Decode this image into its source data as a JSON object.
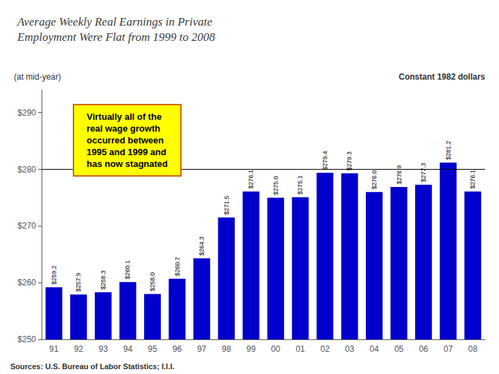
{
  "chart_data": {
    "type": "bar",
    "title": "Average Weekly Real Earnings in Private\nEmployment Were Flat from 1999 to 2008",
    "subtitle": "(at mid-year)",
    "ylabel": "Constant 1982 dollars",
    "annotation": "Virtually all of the\nreal wage growth\noccurred between\n1995 and 1999 and\nhas now stagnated",
    "source": "Sources: U.S. Bureau of Labor Statistics; I.I.I.",
    "categories": [
      "91",
      "92",
      "93",
      "94",
      "95",
      "96",
      "97",
      "98",
      "99",
      "00",
      "01",
      "02",
      "03",
      "04",
      "05",
      "06",
      "07",
      "08"
    ],
    "values": [
      259.2,
      257.9,
      258.3,
      260.1,
      258.0,
      260.7,
      264.3,
      271.5,
      276.1,
      275.0,
      275.1,
      279.4,
      279.3,
      276.0,
      276.9,
      277.3,
      281.2,
      276.1
    ],
    "value_labels": [
      "$259.2",
      "$257.9",
      "$258.3",
      "$260.1",
      "$258.0",
      "$260.7",
      "$264.3",
      "$271.5",
      "$276.1",
      "$275.0",
      "$275.1",
      "$279.4",
      "$279.3",
      "$276.0",
      "$276.9",
      "$277.3",
      "$281.2",
      "$276.1"
    ],
    "data_labels": true,
    "color": "#0000cc",
    "reference_line": 280,
    "ylim": [
      250,
      294
    ],
    "yticks": [
      {
        "value": 250,
        "label": "$250"
      },
      {
        "value": 260,
        "label": "$260"
      },
      {
        "value": 270,
        "label": "$270"
      },
      {
        "value": 280,
        "label": "$280"
      },
      {
        "value": 290,
        "label": "$290"
      }
    ],
    "grid": false
  }
}
